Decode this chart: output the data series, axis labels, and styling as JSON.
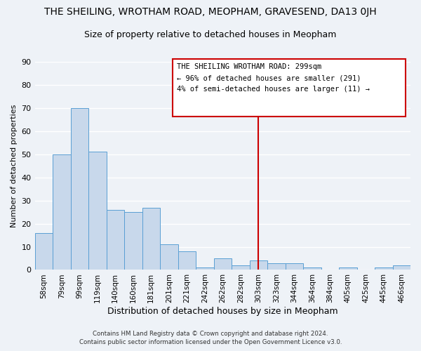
{
  "title": "THE SHEILING, WROTHAM ROAD, MEOPHAM, GRAVESEND, DA13 0JH",
  "subtitle": "Size of property relative to detached houses in Meopham",
  "xlabel": "Distribution of detached houses by size in Meopham",
  "ylabel": "Number of detached properties",
  "bar_color": "#c8d8eb",
  "bar_edge_color": "#5a9fd4",
  "categories": [
    "58sqm",
    "79sqm",
    "99sqm",
    "119sqm",
    "140sqm",
    "160sqm",
    "181sqm",
    "201sqm",
    "221sqm",
    "242sqm",
    "262sqm",
    "282sqm",
    "303sqm",
    "323sqm",
    "344sqm",
    "364sqm",
    "384sqm",
    "405sqm",
    "425sqm",
    "445sqm",
    "466sqm"
  ],
  "values": [
    16,
    50,
    70,
    51,
    26,
    25,
    27,
    11,
    8,
    1,
    5,
    2,
    4,
    3,
    3,
    1,
    0,
    1,
    0,
    1,
    2
  ],
  "ylim": [
    0,
    90
  ],
  "yticks": [
    0,
    10,
    20,
    30,
    40,
    50,
    60,
    70,
    80,
    90
  ],
  "vline_color": "#cc0000",
  "annotation_title": "THE SHEILING WROTHAM ROAD: 299sqm",
  "annotation_line1": "← 96% of detached houses are smaller (291)",
  "annotation_line2": "4% of semi-detached houses are larger (11) →",
  "footer1": "Contains HM Land Registry data © Crown copyright and database right 2024.",
  "footer2": "Contains public sector information licensed under the Open Government Licence v3.0.",
  "background_color": "#eef2f7",
  "grid_color": "#ffffff",
  "title_fontsize": 10,
  "subtitle_fontsize": 9
}
